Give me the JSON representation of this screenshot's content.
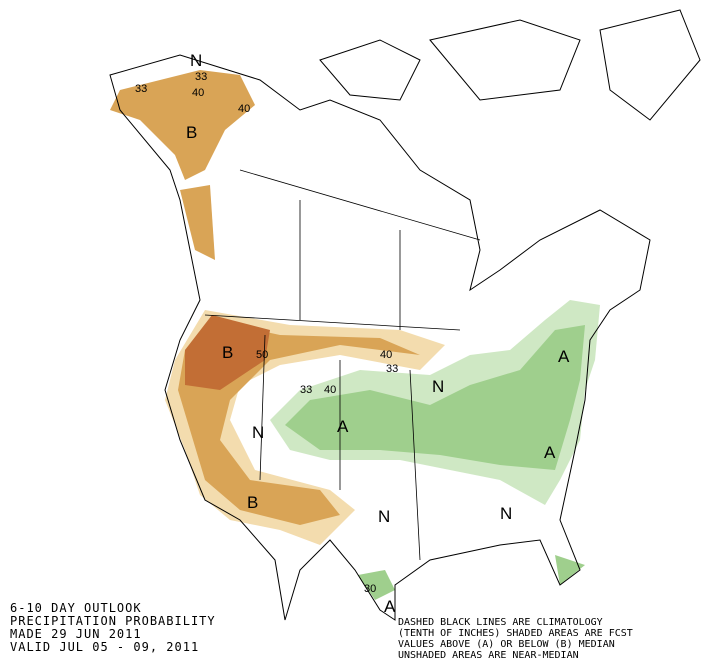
{
  "map_labels": [
    "N",
    "33",
    "33",
    "40",
    "40",
    "B",
    "B",
    "50",
    "40",
    "33",
    "N",
    "33",
    "40",
    "A",
    "N",
    "A",
    "A",
    "B",
    "N",
    "N",
    "30",
    "A"
  ],
  "title_block": [
    "6-10 DAY OUTLOOK",
    "PRECIPITATION PROBABILITY",
    "MADE  29 JUN 2011",
    "VALID  JUL 05 - 09, 2011"
  ],
  "legend_block": [
    "DASHED BLACK LINES ARE CLIMATOLOGY",
    "(TENTH OF INCHES) SHADED AREAS ARE FCST",
    "VALUES ABOVE (A) OR BELOW (B) MEDIAN",
    "UNSHADED AREAS ARE NEAR-MEDIAN"
  ]
}
